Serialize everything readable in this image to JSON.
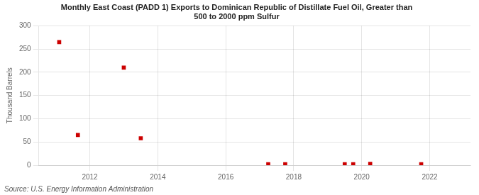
{
  "chart_data": {
    "type": "scatter",
    "title": "Monthly East Coast (PADD 1) Exports to Dominican Republic of Distillate Fuel Oil, Greater than\n500 to 2000 ppm Sulfur",
    "ylabel": "Thousand Barrels",
    "annotation": "Source: U.S. Energy Information Administration",
    "x": [
      2011.1,
      2011.65,
      2013.0,
      2013.5,
      2017.25,
      2017.75,
      2019.5,
      2019.75,
      2020.25,
      2021.75
    ],
    "values": [
      265,
      65,
      210,
      58,
      2,
      2,
      2,
      2,
      3,
      2
    ],
    "color": "#cc0000",
    "marker": "square",
    "xlim": [
      2010.5,
      2023.2
    ],
    "xticks": [
      2012,
      2014,
      2016,
      2018,
      2020,
      2022
    ],
    "ylim": [
      0,
      300
    ],
    "yticks": [
      0,
      50,
      100,
      150,
      200,
      250,
      300
    ],
    "grid": true
  }
}
